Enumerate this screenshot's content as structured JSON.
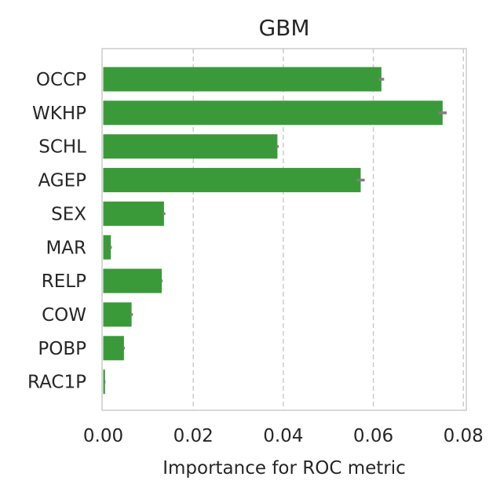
{
  "chart_data": {
    "type": "bar",
    "orientation": "horizontal",
    "title": "GBM",
    "xlabel": "Importance for ROC metric",
    "ylabel": "",
    "categories": [
      "OCCP",
      "WKHP",
      "SCHL",
      "AGEP",
      "SEX",
      "MAR",
      "RELP",
      "COW",
      "POBP",
      "RAC1P"
    ],
    "values": [
      0.0618,
      0.0754,
      0.0387,
      0.0572,
      0.0135,
      0.0017,
      0.013,
      0.0063,
      0.0046,
      0.0004
    ],
    "errors": [
      0.0006,
      0.0009,
      0.0003,
      0.0009,
      0.0003,
      0.0002,
      0.0002,
      0.0003,
      0.0002,
      0.0001
    ],
    "xlim": [
      0.0,
      0.0804
    ],
    "xticks": [
      "0.00",
      "0.02",
      "0.04",
      "0.06",
      "0.08"
    ],
    "xtick_values": [
      0.0,
      0.02,
      0.04,
      0.06,
      0.08
    ],
    "grid": "x-dashed",
    "bar_color": "#3a9a3a",
    "error_color": "#808080"
  }
}
